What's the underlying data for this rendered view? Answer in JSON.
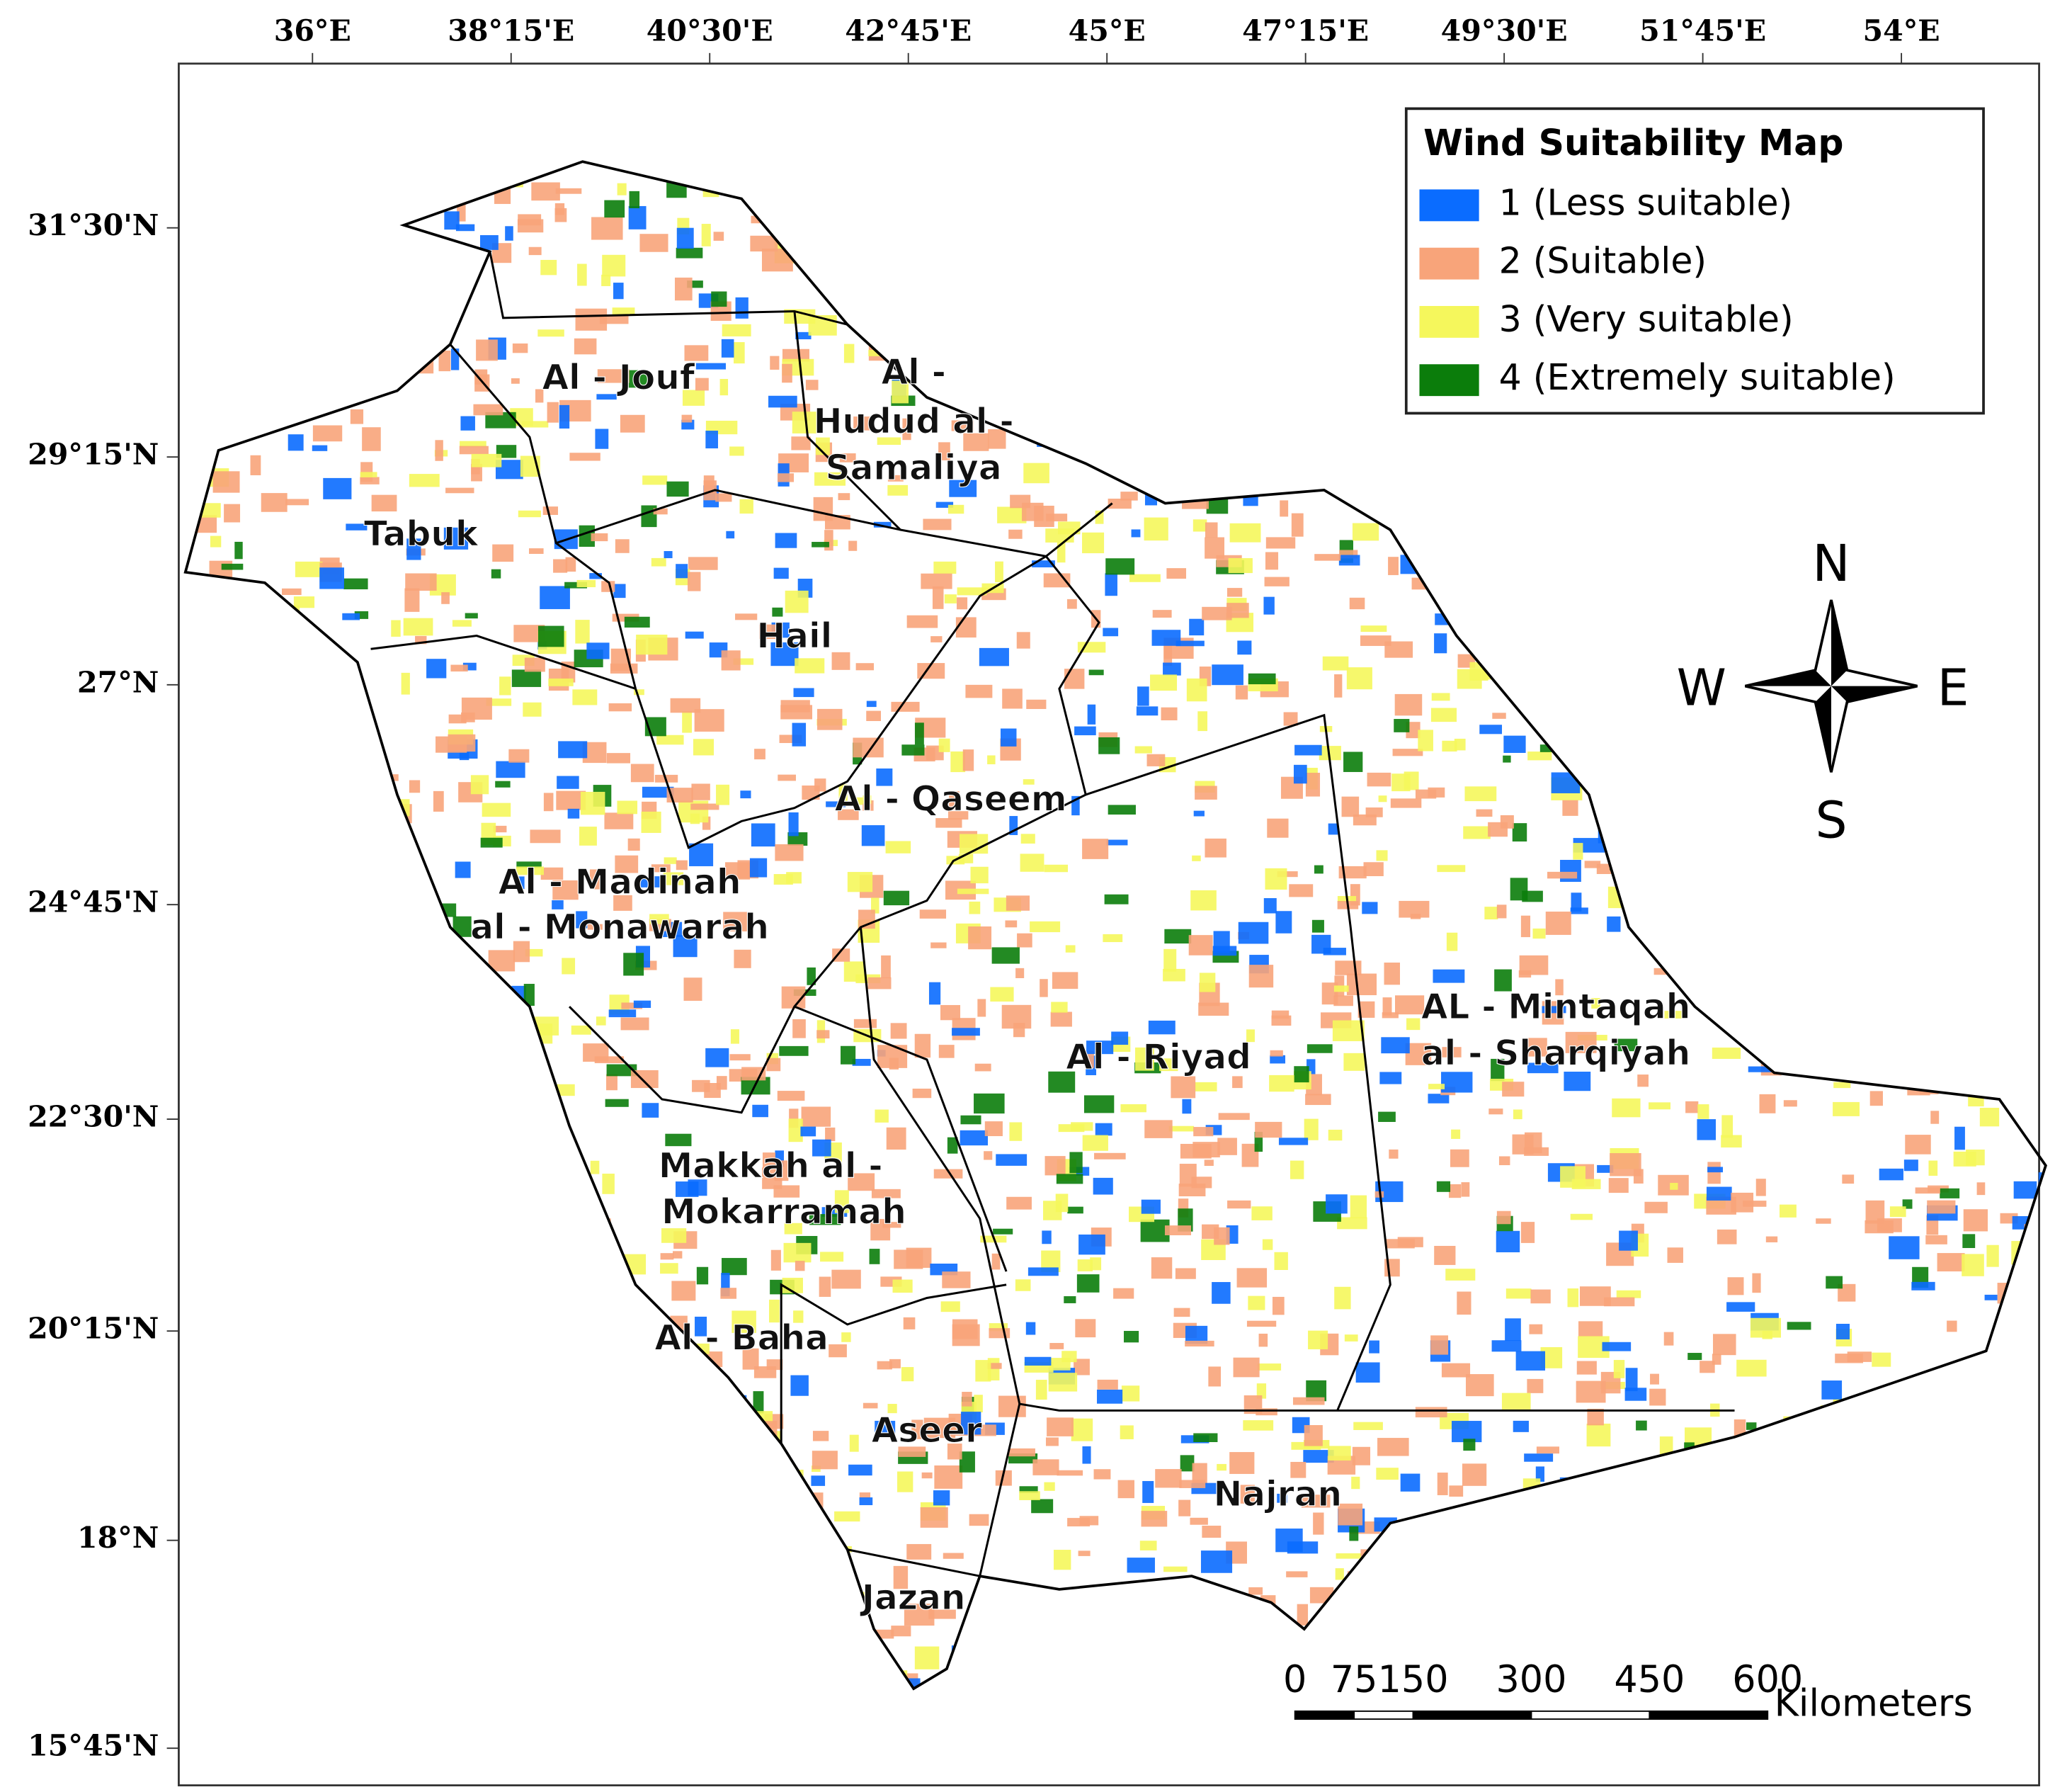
{
  "map": {
    "legend": {
      "title": "Wind Suitability Map",
      "items": [
        {
          "label": "1 (Less suitable)",
          "color": "#0a6cff"
        },
        {
          "label": "2 (Suitable)",
          "color": "#f8a47a"
        },
        {
          "label": "3 (Very suitable)",
          "color": "#f5f75c"
        },
        {
          "label": "4 (Extremely suitable)",
          "color": "#0b7d0b"
        }
      ]
    },
    "longitude_labels": [
      "36°E",
      "38°15'E",
      "40°30'E",
      "42°45'E",
      "45°E",
      "47°15'E",
      "49°30'E",
      "51°45'E",
      "54°E"
    ],
    "latitude_labels": [
      "31°30'N",
      "29°15'N",
      "27°N",
      "24°45'N",
      "22°30'N",
      "20°15'N",
      "18°N",
      "15°45'N"
    ],
    "regions": [
      "Al - Jouf",
      "Al -",
      "Hudud al -",
      "Samaliya",
      "Tabuk",
      "Hail",
      "Al - Qaseem",
      "Al - Madinah",
      "al - Monawarah",
      "Al - Riyad",
      "AL - Mintaqah",
      "al - Sharqiyah",
      "Makkah al -",
      "Mokarramah",
      "Al - Baha",
      "Aseer",
      "Najran",
      "Jazan"
    ],
    "compass": {
      "north": "N",
      "west": "W",
      "east": "E",
      "south": "S"
    },
    "scale_bar": {
      "values": [
        0,
        75,
        150,
        300,
        450,
        600
      ],
      "unit": "Kilometers"
    }
  }
}
